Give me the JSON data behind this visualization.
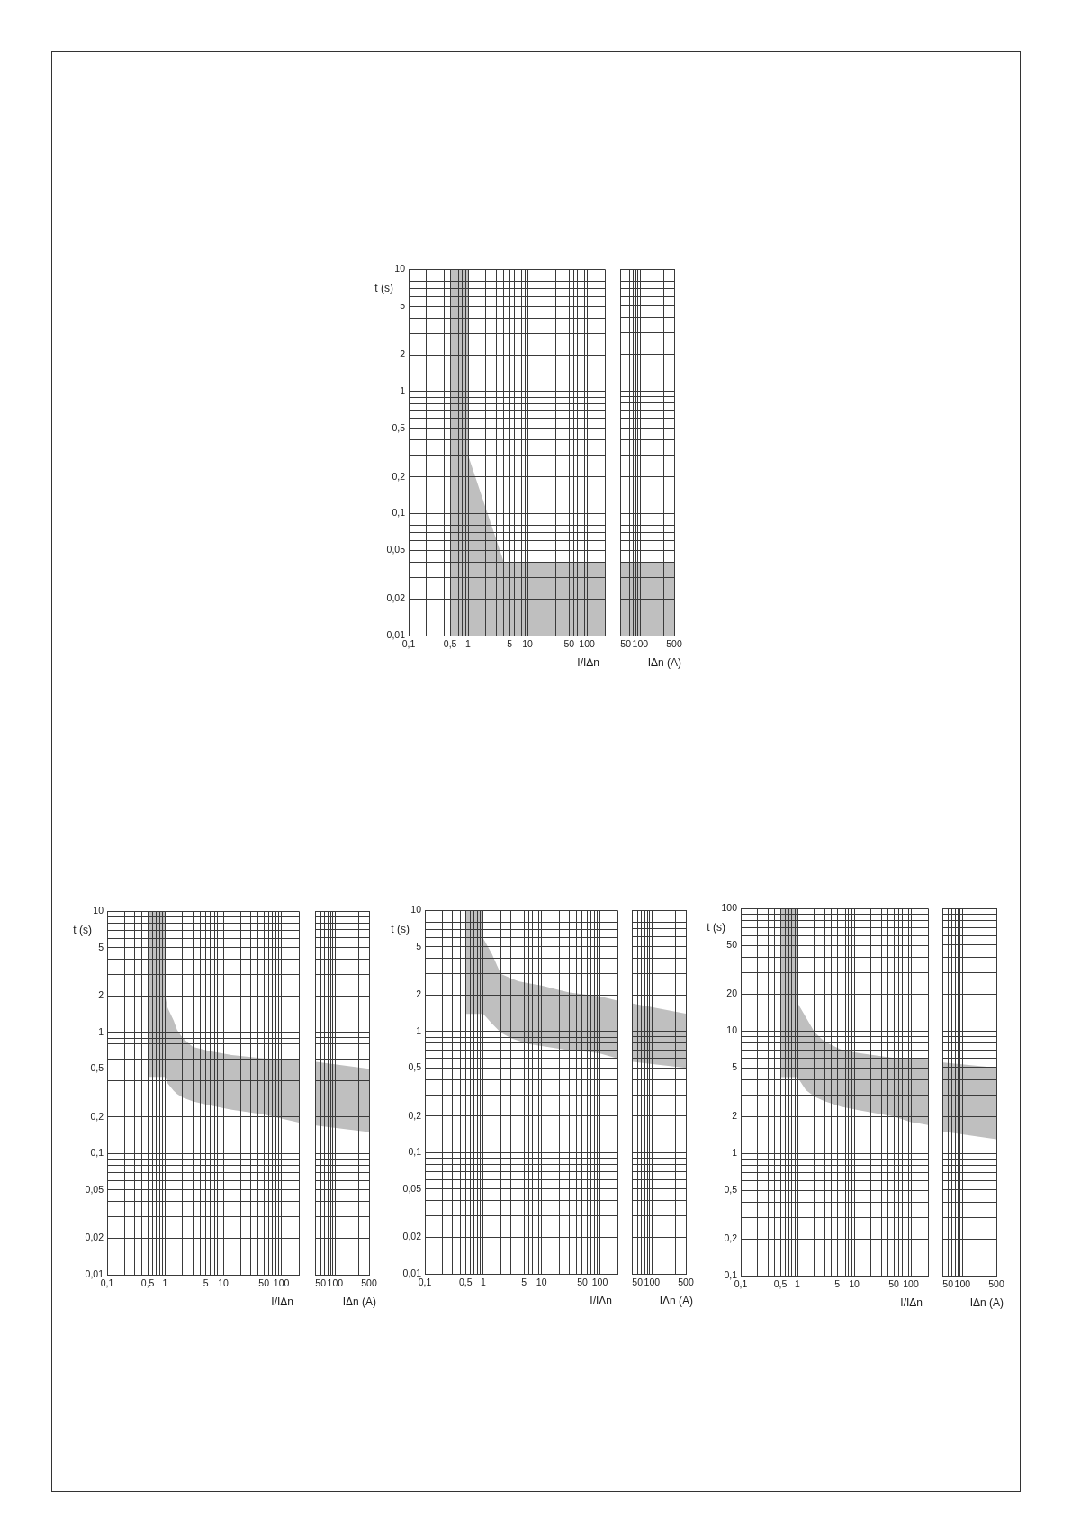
{
  "chart_data": [
    {
      "type": "area",
      "xlabel": "I/IΔn",
      "ylabel": "t (s)",
      "log": "xy",
      "grid": true,
      "xlim": [
        0.1,
        200
      ],
      "ylim": [
        0.01,
        10
      ],
      "xticks": [
        {
          "value": 0.1,
          "label": "0,1"
        },
        {
          "value": 0.2,
          "label": null
        },
        {
          "value": 0.3,
          "label": null
        },
        {
          "value": 0.4,
          "label": null
        },
        {
          "value": 0.5,
          "label": "0,5"
        },
        {
          "value": 0.6,
          "label": null
        },
        {
          "value": 0.7,
          "label": null
        },
        {
          "value": 0.8,
          "label": null
        },
        {
          "value": 0.9,
          "label": null
        },
        1,
        {
          "value": 2,
          "label": null
        },
        {
          "value": 3,
          "label": null
        },
        {
          "value": 4,
          "label": null
        },
        5,
        {
          "value": 6,
          "label": null
        },
        {
          "value": 7,
          "label": null
        },
        {
          "value": 8,
          "label": null
        },
        {
          "value": 9,
          "label": null
        },
        10,
        {
          "value": 20,
          "label": null
        },
        {
          "value": 30,
          "label": null
        },
        {
          "value": 40,
          "label": null
        },
        50,
        {
          "value": 60,
          "label": null
        },
        {
          "value": 70,
          "label": null
        },
        {
          "value": 80,
          "label": null
        },
        {
          "value": 90,
          "label": null
        },
        100,
        {
          "value": 200,
          "label": null
        }
      ],
      "yticks": [
        {
          "value": 0.01,
          "label": "0,01"
        },
        {
          "value": 0.02,
          "label": "0,02"
        },
        {
          "value": 0.03,
          "label": null
        },
        {
          "value": 0.04,
          "label": null
        },
        {
          "value": 0.05,
          "label": "0,05"
        },
        {
          "value": 0.06,
          "label": null
        },
        {
          "value": 0.07,
          "label": null
        },
        {
          "value": 0.08,
          "label": null
        },
        {
          "value": 0.09,
          "label": null
        },
        {
          "value": 0.1,
          "label": "0,1"
        },
        {
          "value": 0.2,
          "label": "0,2"
        },
        {
          "value": 0.3,
          "label": null
        },
        {
          "value": 0.4,
          "label": null
        },
        {
          "value": 0.5,
          "label": "0,5"
        },
        {
          "value": 0.6,
          "label": null
        },
        {
          "value": 0.7,
          "label": null
        },
        {
          "value": 0.8,
          "label": null
        },
        {
          "value": 0.9,
          "label": null
        },
        1,
        2,
        {
          "value": 3,
          "label": null
        },
        {
          "value": 4,
          "label": null
        },
        5,
        {
          "value": 6,
          "label": null
        },
        {
          "value": 7,
          "label": null
        },
        {
          "value": 8,
          "label": null
        },
        {
          "value": 9,
          "label": null
        },
        10
      ],
      "x": [
        0.5,
        1,
        1,
        4,
        200
      ],
      "series": [
        {
          "color": "#bfbfbf",
          "values": [
            null,
            null,
            null,
            null,
            null
          ],
          "upper": [
            10,
            10,
            0.3,
            0.04,
            0.04
          ],
          "lower": [
            0.01,
            0.01,
            0.01,
            0.01,
            0.01
          ]
        }
      ]
    },
    {
      "type": "area",
      "xlabel": "IΔn (A)",
      "log": "xy",
      "grid": true,
      "tick_labels": "x",
      "xlim": [
        40,
        500
      ],
      "ylim": [
        0.01,
        10
      ],
      "xticks": [
        50,
        {
          "value": 60,
          "label": null
        },
        {
          "value": 70,
          "label": null
        },
        {
          "value": 80,
          "label": null
        },
        {
          "value": 90,
          "label": null
        },
        100,
        {
          "value": 300,
          "label": null
        },
        500
      ],
      "yticks": [
        {
          "value": 0.01,
          "label": null
        },
        {
          "value": 0.02,
          "label": null
        },
        {
          "value": 0.03,
          "label": null
        },
        {
          "value": 0.04,
          "label": null
        },
        {
          "value": 0.05,
          "label": null
        },
        {
          "value": 0.06,
          "label": null
        },
        {
          "value": 0.07,
          "label": null
        },
        {
          "value": 0.08,
          "label": null
        },
        {
          "value": 0.09,
          "label": null
        },
        {
          "value": 0.1,
          "label": null
        },
        {
          "value": 0.2,
          "label": null
        },
        {
          "value": 0.3,
          "label": null
        },
        {
          "value": 0.4,
          "label": null
        },
        {
          "value": 0.5,
          "label": null
        },
        {
          "value": 0.6,
          "label": null
        },
        {
          "value": 0.7,
          "label": null
        },
        {
          "value": 0.8,
          "label": null
        },
        {
          "value": 0.9,
          "label": null
        },
        {
          "value": 1,
          "label": null
        },
        {
          "value": 2,
          "label": null
        },
        {
          "value": 3,
          "label": null
        },
        {
          "value": 4,
          "label": null
        },
        {
          "value": 5,
          "label": null
        },
        {
          "value": 6,
          "label": null
        },
        {
          "value": 7,
          "label": null
        },
        {
          "value": 8,
          "label": null
        },
        {
          "value": 9,
          "label": null
        },
        {
          "value": 10,
          "label": null
        }
      ],
      "x": [
        40,
        500
      ],
      "series": [
        {
          "color": "#bfbfbf",
          "values": [
            null,
            null
          ],
          "upper": [
            0.04,
            0.04
          ],
          "lower": [
            0.01,
            0.01
          ]
        }
      ]
    },
    {
      "type": "area",
      "xlabel": "I/IΔn",
      "ylabel": "t (s)",
      "log": "xy",
      "grid": true,
      "xlim": [
        0.1,
        200
      ],
      "ylim": [
        0.01,
        10
      ],
      "xticks": [
        {
          "value": 0.1,
          "label": "0,1"
        },
        {
          "value": 0.2,
          "label": null
        },
        {
          "value": 0.3,
          "label": null
        },
        {
          "value": 0.4,
          "label": null
        },
        {
          "value": 0.5,
          "label": "0,5"
        },
        {
          "value": 0.6,
          "label": null
        },
        {
          "value": 0.7,
          "label": null
        },
        {
          "value": 0.8,
          "label": null
        },
        {
          "value": 0.9,
          "label": null
        },
        1,
        {
          "value": 2,
          "label": null
        },
        {
          "value": 3,
          "label": null
        },
        {
          "value": 4,
          "label": null
        },
        5,
        {
          "value": 6,
          "label": null
        },
        {
          "value": 7,
          "label": null
        },
        {
          "value": 8,
          "label": null
        },
        {
          "value": 9,
          "label": null
        },
        10,
        {
          "value": 20,
          "label": null
        },
        {
          "value": 30,
          "label": null
        },
        {
          "value": 40,
          "label": null
        },
        50,
        {
          "value": 60,
          "label": null
        },
        {
          "value": 70,
          "label": null
        },
        {
          "value": 80,
          "label": null
        },
        {
          "value": 90,
          "label": null
        },
        100,
        {
          "value": 200,
          "label": null
        }
      ],
      "yticks": [
        {
          "value": 0.01,
          "label": "0,01"
        },
        {
          "value": 0.02,
          "label": "0,02"
        },
        {
          "value": 0.03,
          "label": null
        },
        {
          "value": 0.04,
          "label": null
        },
        {
          "value": 0.05,
          "label": "0,05"
        },
        {
          "value": 0.06,
          "label": null
        },
        {
          "value": 0.07,
          "label": null
        },
        {
          "value": 0.08,
          "label": null
        },
        {
          "value": 0.09,
          "label": null
        },
        {
          "value": 0.1,
          "label": "0,1"
        },
        {
          "value": 0.2,
          "label": "0,2"
        },
        {
          "value": 0.3,
          "label": null
        },
        {
          "value": 0.4,
          "label": null
        },
        {
          "value": 0.5,
          "label": "0,5"
        },
        {
          "value": 0.6,
          "label": null
        },
        {
          "value": 0.7,
          "label": null
        },
        {
          "value": 0.8,
          "label": null
        },
        {
          "value": 0.9,
          "label": null
        },
        1,
        2,
        {
          "value": 3,
          "label": null
        },
        {
          "value": 4,
          "label": null
        },
        5,
        {
          "value": 6,
          "label": null
        },
        {
          "value": 7,
          "label": null
        },
        {
          "value": 8,
          "label": null
        },
        {
          "value": 9,
          "label": null
        },
        10
      ],
      "x": [
        0.5,
        1,
        1,
        1.1,
        1.4,
        1.6,
        2,
        3,
        6,
        14,
        50,
        200
      ],
      "series": [
        {
          "color": "#bfbfbf",
          "values": [
            null,
            null,
            null,
            null,
            null,
            null,
            null,
            null,
            null,
            null,
            null,
            null
          ],
          "upper": [
            10,
            10,
            2,
            1.6,
            1.25,
            1.05,
            0.9,
            0.76,
            0.7,
            0.65,
            0.61,
            0.6
          ],
          "lower": [
            0.43,
            0.43,
            0.43,
            0.38,
            0.33,
            0.31,
            0.29,
            0.27,
            0.25,
            0.23,
            0.21,
            0.18
          ]
        }
      ]
    },
    {
      "type": "area",
      "xlabel": "IΔn (A)",
      "log": "xy",
      "grid": true,
      "tick_labels": "x",
      "xlim": [
        40,
        500
      ],
      "ylim": [
        0.01,
        10
      ],
      "xticks": [
        50,
        {
          "value": 60,
          "label": null
        },
        {
          "value": 70,
          "label": null
        },
        {
          "value": 80,
          "label": null
        },
        {
          "value": 90,
          "label": null
        },
        100,
        {
          "value": 300,
          "label": null
        },
        500
      ],
      "yticks": [
        {
          "value": 0.01,
          "label": null
        },
        {
          "value": 0.02,
          "label": null
        },
        {
          "value": 0.03,
          "label": null
        },
        {
          "value": 0.04,
          "label": null
        },
        {
          "value": 0.05,
          "label": null
        },
        {
          "value": 0.06,
          "label": null
        },
        {
          "value": 0.07,
          "label": null
        },
        {
          "value": 0.08,
          "label": null
        },
        {
          "value": 0.09,
          "label": null
        },
        {
          "value": 0.1,
          "label": null
        },
        {
          "value": 0.2,
          "label": null
        },
        {
          "value": 0.3,
          "label": null
        },
        {
          "value": 0.4,
          "label": null
        },
        {
          "value": 0.5,
          "label": null
        },
        {
          "value": 0.6,
          "label": null
        },
        {
          "value": 0.7,
          "label": null
        },
        {
          "value": 0.8,
          "label": null
        },
        {
          "value": 0.9,
          "label": null
        },
        {
          "value": 1,
          "label": null
        },
        {
          "value": 2,
          "label": null
        },
        {
          "value": 3,
          "label": null
        },
        {
          "value": 4,
          "label": null
        },
        {
          "value": 5,
          "label": null
        },
        {
          "value": 6,
          "label": null
        },
        {
          "value": 7,
          "label": null
        },
        {
          "value": 8,
          "label": null
        },
        {
          "value": 9,
          "label": null
        },
        {
          "value": 10,
          "label": null
        }
      ],
      "x": [
        40,
        500
      ],
      "series": [
        {
          "color": "#bfbfbf",
          "values": [
            null,
            null
          ],
          "upper": [
            0.57,
            0.5
          ],
          "lower": [
            0.17,
            0.15
          ]
        }
      ]
    },
    {
      "type": "area",
      "xlabel": "I/IΔn",
      "ylabel": "t (s)",
      "log": "xy",
      "grid": true,
      "xlim": [
        0.1,
        200
      ],
      "ylim": [
        0.01,
        10
      ],
      "xticks": [
        {
          "value": 0.1,
          "label": "0,1"
        },
        {
          "value": 0.2,
          "label": null
        },
        {
          "value": 0.3,
          "label": null
        },
        {
          "value": 0.4,
          "label": null
        },
        {
          "value": 0.5,
          "label": "0,5"
        },
        {
          "value": 0.6,
          "label": null
        },
        {
          "value": 0.7,
          "label": null
        },
        {
          "value": 0.8,
          "label": null
        },
        {
          "value": 0.9,
          "label": null
        },
        1,
        {
          "value": 2,
          "label": null
        },
        {
          "value": 3,
          "label": null
        },
        {
          "value": 4,
          "label": null
        },
        5,
        {
          "value": 6,
          "label": null
        },
        {
          "value": 7,
          "label": null
        },
        {
          "value": 8,
          "label": null
        },
        {
          "value": 9,
          "label": null
        },
        10,
        {
          "value": 20,
          "label": null
        },
        {
          "value": 30,
          "label": null
        },
        {
          "value": 40,
          "label": null
        },
        50,
        {
          "value": 60,
          "label": null
        },
        {
          "value": 70,
          "label": null
        },
        {
          "value": 80,
          "label": null
        },
        {
          "value": 90,
          "label": null
        },
        100,
        {
          "value": 200,
          "label": null
        }
      ],
      "yticks": [
        {
          "value": 0.01,
          "label": "0,01"
        },
        {
          "value": 0.02,
          "label": "0,02"
        },
        {
          "value": 0.03,
          "label": null
        },
        {
          "value": 0.04,
          "label": null
        },
        {
          "value": 0.05,
          "label": "0,05"
        },
        {
          "value": 0.06,
          "label": null
        },
        {
          "value": 0.07,
          "label": null
        },
        {
          "value": 0.08,
          "label": null
        },
        {
          "value": 0.09,
          "label": null
        },
        {
          "value": 0.1,
          "label": "0,1"
        },
        {
          "value": 0.2,
          "label": "0,2"
        },
        {
          "value": 0.3,
          "label": null
        },
        {
          "value": 0.4,
          "label": null
        },
        {
          "value": 0.5,
          "label": "0,5"
        },
        {
          "value": 0.6,
          "label": null
        },
        {
          "value": 0.7,
          "label": null
        },
        {
          "value": 0.8,
          "label": null
        },
        {
          "value": 0.9,
          "label": null
        },
        1,
        2,
        {
          "value": 3,
          "label": null
        },
        {
          "value": 4,
          "label": null
        },
        5,
        {
          "value": 6,
          "label": null
        },
        {
          "value": 7,
          "label": null
        },
        {
          "value": 8,
          "label": null
        },
        {
          "value": 9,
          "label": null
        },
        10
      ],
      "x": [
        0.5,
        1,
        1,
        1.4,
        2,
        3,
        4,
        6,
        10,
        20,
        30,
        65,
        100,
        200
      ],
      "series": [
        {
          "color": "#bfbfbf",
          "values": [
            null,
            null,
            null,
            null,
            null,
            null,
            null,
            null,
            null,
            null,
            null,
            null,
            null,
            null
          ],
          "upper": [
            10,
            10,
            5.9,
            4.4,
            3,
            2.75,
            2.6,
            2.5,
            2.4,
            2.2,
            2.1,
            2,
            1.95,
            1.8
          ],
          "lower": [
            1.4,
            1.4,
            1.4,
            1.17,
            0.98,
            0.88,
            0.84,
            0.79,
            0.76,
            0.72,
            0.7,
            0.68,
            0.66,
            0.6
          ]
        }
      ]
    },
    {
      "type": "area",
      "xlabel": "IΔn (A)",
      "log": "xy",
      "grid": true,
      "tick_labels": "x",
      "xlim": [
        40,
        500
      ],
      "ylim": [
        0.01,
        10
      ],
      "xticks": [
        50,
        {
          "value": 60,
          "label": null
        },
        {
          "value": 70,
          "label": null
        },
        {
          "value": 80,
          "label": null
        },
        {
          "value": 90,
          "label": null
        },
        100,
        {
          "value": 300,
          "label": null
        },
        500
      ],
      "yticks": [
        {
          "value": 0.01,
          "label": null
        },
        {
          "value": 0.02,
          "label": null
        },
        {
          "value": 0.03,
          "label": null
        },
        {
          "value": 0.04,
          "label": null
        },
        {
          "value": 0.05,
          "label": null
        },
        {
          "value": 0.06,
          "label": null
        },
        {
          "value": 0.07,
          "label": null
        },
        {
          "value": 0.08,
          "label": null
        },
        {
          "value": 0.09,
          "label": null
        },
        {
          "value": 0.1,
          "label": null
        },
        {
          "value": 0.2,
          "label": null
        },
        {
          "value": 0.3,
          "label": null
        },
        {
          "value": 0.4,
          "label": null
        },
        {
          "value": 0.5,
          "label": null
        },
        {
          "value": 0.6,
          "label": null
        },
        {
          "value": 0.7,
          "label": null
        },
        {
          "value": 0.8,
          "label": null
        },
        {
          "value": 0.9,
          "label": null
        },
        {
          "value": 1,
          "label": null
        },
        {
          "value": 2,
          "label": null
        },
        {
          "value": 3,
          "label": null
        },
        {
          "value": 4,
          "label": null
        },
        {
          "value": 5,
          "label": null
        },
        {
          "value": 6,
          "label": null
        },
        {
          "value": 7,
          "label": null
        },
        {
          "value": 8,
          "label": null
        },
        {
          "value": 9,
          "label": null
        },
        {
          "value": 10,
          "label": null
        }
      ],
      "x": [
        40,
        500
      ],
      "series": [
        {
          "color": "#bfbfbf",
          "values": [
            null,
            null
          ],
          "upper": [
            1.7,
            1.4
          ],
          "lower": [
            0.56,
            0.5
          ]
        }
      ]
    },
    {
      "type": "area",
      "xlabel": "I/IΔn",
      "ylabel": "t (s)",
      "log": "xy",
      "grid": true,
      "xlim": [
        0.1,
        200
      ],
      "ylim": [
        0.1,
        100
      ],
      "xticks": [
        {
          "value": 0.1,
          "label": "0,1"
        },
        {
          "value": 0.2,
          "label": null
        },
        {
          "value": 0.3,
          "label": null
        },
        {
          "value": 0.4,
          "label": null
        },
        {
          "value": 0.5,
          "label": "0,5"
        },
        {
          "value": 0.6,
          "label": null
        },
        {
          "value": 0.7,
          "label": null
        },
        {
          "value": 0.8,
          "label": null
        },
        {
          "value": 0.9,
          "label": null
        },
        1,
        {
          "value": 2,
          "label": null
        },
        {
          "value": 3,
          "label": null
        },
        {
          "value": 4,
          "label": null
        },
        5,
        {
          "value": 6,
          "label": null
        },
        {
          "value": 7,
          "label": null
        },
        {
          "value": 8,
          "label": null
        },
        {
          "value": 9,
          "label": null
        },
        10,
        {
          "value": 20,
          "label": null
        },
        {
          "value": 30,
          "label": null
        },
        {
          "value": 40,
          "label": null
        },
        50,
        {
          "value": 60,
          "label": null
        },
        {
          "value": 70,
          "label": null
        },
        {
          "value": 80,
          "label": null
        },
        {
          "value": 90,
          "label": null
        },
        100,
        {
          "value": 200,
          "label": null
        }
      ],
      "yticks": [
        {
          "value": 0.1,
          "label": "0,1"
        },
        {
          "value": 0.2,
          "label": "0,2"
        },
        {
          "value": 0.3,
          "label": null
        },
        {
          "value": 0.4,
          "label": null
        },
        {
          "value": 0.5,
          "label": "0,5"
        },
        {
          "value": 0.6,
          "label": null
        },
        {
          "value": 0.7,
          "label": null
        },
        {
          "value": 0.8,
          "label": null
        },
        {
          "value": 0.9,
          "label": null
        },
        1,
        2,
        {
          "value": 3,
          "label": null
        },
        {
          "value": 4,
          "label": null
        },
        5,
        {
          "value": 6,
          "label": null
        },
        {
          "value": 7,
          "label": null
        },
        {
          "value": 8,
          "label": null
        },
        {
          "value": 9,
          "label": null
        },
        10,
        20,
        {
          "value": 30,
          "label": null
        },
        {
          "value": 40,
          "label": null
        },
        50,
        {
          "value": 60,
          "label": null
        },
        {
          "value": 70,
          "label": null
        },
        {
          "value": 80,
          "label": null
        },
        {
          "value": 90,
          "label": null
        },
        100
      ],
      "x": [
        0.5,
        1,
        1,
        1.4,
        2,
        3,
        6,
        12,
        50,
        100,
        200
      ],
      "series": [
        {
          "color": "#bfbfbf",
          "values": [
            null,
            null,
            null,
            null,
            null,
            null,
            null,
            null,
            null,
            null,
            null
          ],
          "upper": [
            100,
            100,
            17,
            13,
            9.8,
            8.2,
            7,
            6.6,
            6,
            6,
            5.9
          ],
          "lower": [
            4.2,
            4.2,
            4.2,
            3.3,
            2.9,
            2.66,
            2.4,
            2.25,
            2,
            1.8,
            1.7
          ]
        }
      ]
    },
    {
      "type": "area",
      "xlabel": "IΔn (A)",
      "log": "xy",
      "grid": true,
      "tick_labels": "x",
      "xlim": [
        40,
        500
      ],
      "ylim": [
        0.1,
        100
      ],
      "xticks": [
        50,
        {
          "value": 60,
          "label": null
        },
        {
          "value": 70,
          "label": null
        },
        {
          "value": 80,
          "label": null
        },
        {
          "value": 90,
          "label": null
        },
        100,
        {
          "value": 300,
          "label": null
        },
        500
      ],
      "yticks": [
        {
          "value": 0.1,
          "label": null
        },
        {
          "value": 0.2,
          "label": null
        },
        {
          "value": 0.3,
          "label": null
        },
        {
          "value": 0.4,
          "label": null
        },
        {
          "value": 0.5,
          "label": null
        },
        {
          "value": 0.6,
          "label": null
        },
        {
          "value": 0.7,
          "label": null
        },
        {
          "value": 0.8,
          "label": null
        },
        {
          "value": 0.9,
          "label": null
        },
        {
          "value": 1,
          "label": null
        },
        {
          "value": 2,
          "label": null
        },
        {
          "value": 3,
          "label": null
        },
        {
          "value": 4,
          "label": null
        },
        {
          "value": 5,
          "label": null
        },
        {
          "value": 6,
          "label": null
        },
        {
          "value": 7,
          "label": null
        },
        {
          "value": 8,
          "label": null
        },
        {
          "value": 9,
          "label": null
        },
        {
          "value": 10,
          "label": null
        },
        {
          "value": 20,
          "label": null
        },
        {
          "value": 30,
          "label": null
        },
        {
          "value": 40,
          "label": null
        },
        {
          "value": 50,
          "label": null
        },
        {
          "value": 60,
          "label": null
        },
        {
          "value": 70,
          "label": null
        },
        {
          "value": 80,
          "label": null
        },
        {
          "value": 90,
          "label": null
        },
        {
          "value": 100,
          "label": null
        }
      ],
      "x": [
        40,
        500
      ],
      "series": [
        {
          "color": "#bfbfbf",
          "values": [
            null,
            null
          ],
          "upper": [
            5.5,
            5
          ],
          "lower": [
            1.5,
            1.3
          ]
        }
      ]
    }
  ]
}
